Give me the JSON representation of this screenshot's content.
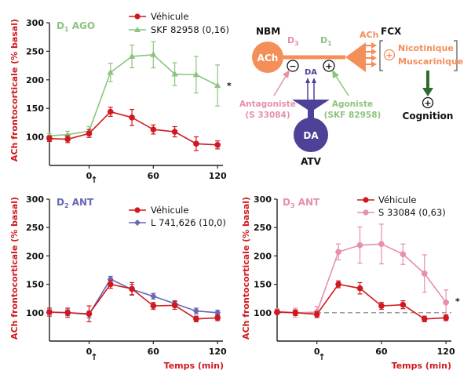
{
  "colors": {
    "red": "#d0191f",
    "green": "#8cc47f",
    "blue": "#6767b5",
    "pink": "#e690aa",
    "orange": "#f48f5a",
    "dark_purple": "#4d4298",
    "dark_green": "#2e6b2e",
    "axis": "#222222"
  },
  "chart_data": [
    {
      "type": "line",
      "panel": "top-left",
      "title": "D1 AGO",
      "title_prefix": "D",
      "title_sub": "1",
      "title_suffix": " AGO",
      "ylabel": "ACh frontocorticale (% basal)",
      "xlabel": "",
      "ylim": [
        50,
        300
      ],
      "xlim": [
        -37,
        125
      ],
      "yticks": [
        100,
        150,
        200,
        250,
        300
      ],
      "xticks": [
        0,
        60,
        120
      ],
      "injection_mark": "↑",
      "series": [
        {
          "name": "Véhicule",
          "color": "red",
          "marker": "circle",
          "x": [
            -40,
            -20,
            0,
            20,
            40,
            60,
            80,
            100,
            120
          ],
          "y": [
            97,
            96,
            106,
            144,
            134,
            113,
            109,
            88,
            86
          ],
          "err": [
            5,
            6,
            7,
            8,
            14,
            8,
            9,
            12,
            7
          ]
        },
        {
          "name": "SKF 82958 (0,16)",
          "color": "green",
          "marker": "triangle",
          "x": [
            -40,
            -20,
            0,
            20,
            40,
            60,
            80,
            100,
            120
          ],
          "y": [
            102,
            104,
            110,
            213,
            241,
            244,
            210,
            209,
            190
          ],
          "err": [
            4,
            6,
            8,
            16,
            20,
            23,
            20,
            32,
            36
          ]
        }
      ],
      "significance": "*"
    },
    {
      "type": "line",
      "panel": "bottom-left",
      "title": "D2 ANT",
      "title_prefix": "D",
      "title_sub": "2",
      "title_suffix": " ANT",
      "ylabel": "ACh frontocorticale (% basal)",
      "xlabel": "",
      "ylim": [
        50,
        300
      ],
      "xlim": [
        -37,
        125
      ],
      "yticks": [
        100,
        150,
        200,
        250,
        300
      ],
      "xticks": [
        0,
        60,
        120
      ],
      "injection_mark": "↑",
      "series": [
        {
          "name": "Véhicule",
          "color": "red",
          "marker": "circle",
          "x": [
            -40,
            -20,
            0,
            20,
            40,
            60,
            80,
            100,
            120
          ],
          "y": [
            101,
            100,
            98,
            150,
            142,
            112,
            113,
            89,
            91
          ],
          "err": [
            7,
            8,
            14,
            7,
            11,
            6,
            7,
            5,
            5
          ]
        },
        {
          "name": "L 741,626 (10,0)",
          "color": "blue",
          "marker": "diamond",
          "x": [
            -40,
            -20,
            0,
            20,
            40,
            60,
            80,
            100,
            120
          ],
          "y": [
            101,
            100,
            97,
            159,
            141,
            129,
            116,
            103,
            100
          ],
          "err": [
            4,
            5,
            6,
            5,
            9,
            5,
            5,
            5,
            4
          ]
        }
      ]
    },
    {
      "type": "line",
      "panel": "bottom-right",
      "title": "D3 ANT",
      "title_prefix": "D",
      "title_sub": "3",
      "title_suffix": " ANT",
      "ylabel": "ACh frontocorticale (% basal)",
      "xlabel": "Temps (min)",
      "ylim": [
        50,
        300
      ],
      "xlim": [
        -37,
        125
      ],
      "yticks": [
        100,
        150,
        200,
        250,
        300
      ],
      "xticks": [
        0,
        60,
        120
      ],
      "injection_mark": "↑",
      "baseline": 100,
      "series": [
        {
          "name": "Véhicule",
          "color": "red",
          "marker": "circle",
          "x": [
            -40,
            -20,
            0,
            20,
            40,
            60,
            80,
            100,
            120
          ],
          "y": [
            101,
            100,
            97,
            150,
            143,
            112,
            114,
            89,
            91
          ],
          "err": [
            4,
            5,
            5,
            6,
            10,
            6,
            7,
            5,
            5
          ]
        },
        {
          "name": "S 33084 (0,63)",
          "color": "pink",
          "marker": "circle",
          "x": [
            -40,
            -20,
            0,
            20,
            40,
            60,
            80,
            100,
            120
          ],
          "y": [
            102,
            100,
            101,
            207,
            219,
            221,
            203,
            169,
            118
          ],
          "err": [
            5,
            8,
            10,
            14,
            32,
            35,
            18,
            33,
            22
          ]
        }
      ],
      "significance": "*"
    }
  ],
  "x_axis_title": "Temps (min)",
  "diagram": {
    "nbm": "NBM",
    "ach_node": "ACh",
    "d3_prefix": "D",
    "d3_sub": "3",
    "d1_prefix": "D",
    "d1_sub": "1",
    "ach_release": "ACh",
    "fcx": "FCX",
    "receptor_nicotinic": "Nicotinique",
    "receptor_muscarinic": "Muscarinique",
    "cognition": "Cognition",
    "da_label": "DA",
    "da_node": "DA",
    "atv": "ATV",
    "antagonist_line1": "Antagoniste",
    "antagonist_line2": "(S 33084)",
    "agonist_line1": "Agoniste",
    "agonist_line2": "(SKF 82958)",
    "minus_sign": "−",
    "plus_sign": "+"
  }
}
